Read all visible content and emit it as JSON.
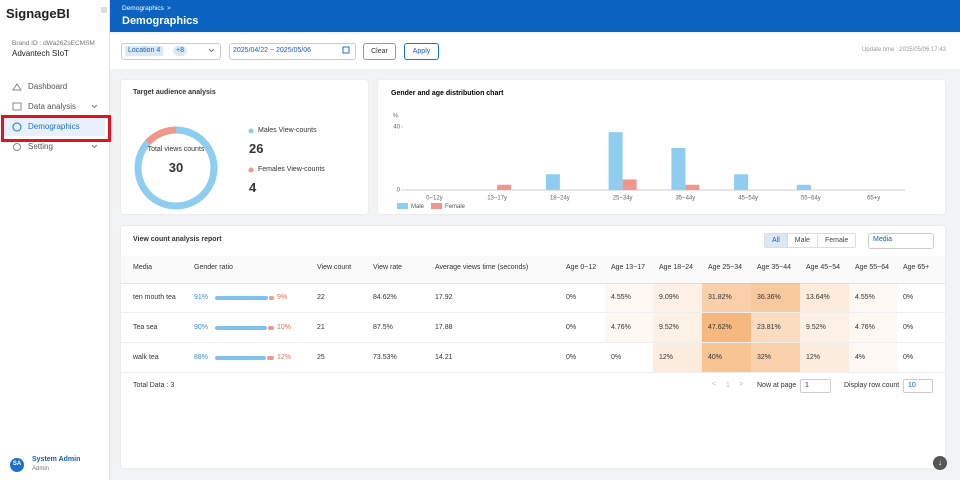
{
  "sidebar": {
    "app_name": "SignageBI",
    "brand_id": "Brand ID : dWa26ZsECMSM",
    "org": "Advantech SIoT",
    "menu": [
      "Dashboard",
      "Data analysis",
      "Demographics",
      "Setting"
    ],
    "user": {
      "initials": "SA",
      "name": "System Admin",
      "role": "Admin"
    }
  },
  "header": {
    "breadcrumb": "Demographics",
    "title": "Demographics"
  },
  "filters": {
    "location": "Location 4",
    "location_more": "+8",
    "date_range": "2025/04/22 ~ 2025/05/06",
    "clear": "Clear",
    "apply": "Apply",
    "update_time": "Update time : 2025/05/06 17:43"
  },
  "audience": {
    "title": "Target audience analysis",
    "center_label": "Total views counts",
    "total": 30,
    "males": {
      "label": "Males View-counts",
      "value": 26,
      "color": "#8ecdf0"
    },
    "females": {
      "label": "Females View-counts",
      "value": 4,
      "color": "#f0968a"
    }
  },
  "chart_data": {
    "type": "bar",
    "title": "Gender and age distribution chart",
    "y_unit": "%",
    "categories": [
      "0~12y",
      "13~17y",
      "18~24y",
      "25~34y",
      "35~44y",
      "45~54y",
      "55~64y",
      "65+y"
    ],
    "series": [
      {
        "name": "Male",
        "color": "#8ecdf0",
        "values": [
          0,
          0,
          10,
          36.7,
          26.7,
          10,
          3.3,
          0
        ]
      },
      {
        "name": "Female",
        "color": "#f0968a",
        "values": [
          0,
          3.3,
          0,
          6.7,
          3.3,
          0,
          0,
          0
        ]
      }
    ],
    "ylim": [
      0,
      40
    ],
    "yticks": [
      0,
      40
    ]
  },
  "report": {
    "title": "View count analysis report",
    "toggles": [
      "All",
      "Male",
      "Female"
    ],
    "group_by": "Media",
    "columns": [
      "Media",
      "Gender ratio",
      "View count",
      "View rate",
      "Average views time (seconds)",
      "Age 0~12",
      "Age 13~17",
      "Age 18~24",
      "Age 25~34",
      "Age 35~44",
      "Age 45~54",
      "Age 55~64",
      "Age 65+"
    ],
    "rows": [
      {
        "media": "ten mouth tea",
        "gender": {
          "male": {
            "value": 91,
            "label": "91%"
          },
          "female": {
            "value": 9,
            "label": "9%"
          }
        },
        "view_count": 22,
        "view_rate": "84.62%",
        "avg_time": 17.92,
        "ages": [
          {
            "value": 0,
            "label": "0%"
          },
          {
            "value": 4.55,
            "label": "4.55%"
          },
          {
            "value": 9.09,
            "label": "9.09%"
          },
          {
            "value": 31.82,
            "label": "31.82%"
          },
          {
            "value": 36.36,
            "label": "36.36%"
          },
          {
            "value": 13.64,
            "label": "13.64%"
          },
          {
            "value": 4.55,
            "label": "4.55%"
          },
          {
            "value": 0,
            "label": "0%"
          }
        ]
      },
      {
        "media": "Tea sea",
        "gender": {
          "male": {
            "value": 90,
            "label": "90%"
          },
          "female": {
            "value": 10,
            "label": "10%"
          }
        },
        "view_count": 21,
        "view_rate": "87.5%",
        "avg_time": 17.88,
        "ages": [
          {
            "value": 0,
            "label": "0%"
          },
          {
            "value": 4.76,
            "label": "4.76%"
          },
          {
            "value": 9.52,
            "label": "9.52%"
          },
          {
            "value": 47.62,
            "label": "47.62%"
          },
          {
            "value": 23.81,
            "label": "23.81%"
          },
          {
            "value": 9.52,
            "label": "9.52%"
          },
          {
            "value": 4.76,
            "label": "4.76%"
          },
          {
            "value": 0,
            "label": "0%"
          }
        ]
      },
      {
        "media": "walk tea",
        "gender": {
          "male": {
            "value": 88,
            "label": "88%"
          },
          "female": {
            "value": 12,
            "label": "12%"
          }
        },
        "view_count": 25,
        "view_rate": "73.53%",
        "avg_time": 14.21,
        "ages": [
          {
            "value": 0,
            "label": "0%"
          },
          {
            "value": 0,
            "label": "0%"
          },
          {
            "value": 12,
            "label": "12%"
          },
          {
            "value": 40,
            "label": "40%"
          },
          {
            "value": 32,
            "label": "32%"
          },
          {
            "value": 12,
            "label": "12%"
          },
          {
            "value": 4,
            "label": "4%"
          },
          {
            "value": 0,
            "label": "0%"
          }
        ]
      }
    ],
    "total": "Total Data : 3",
    "pagination": {
      "page": "1",
      "now_at": "Now at page",
      "page_input": "1",
      "row_count_label": "Display row count",
      "row_count": "10"
    }
  }
}
